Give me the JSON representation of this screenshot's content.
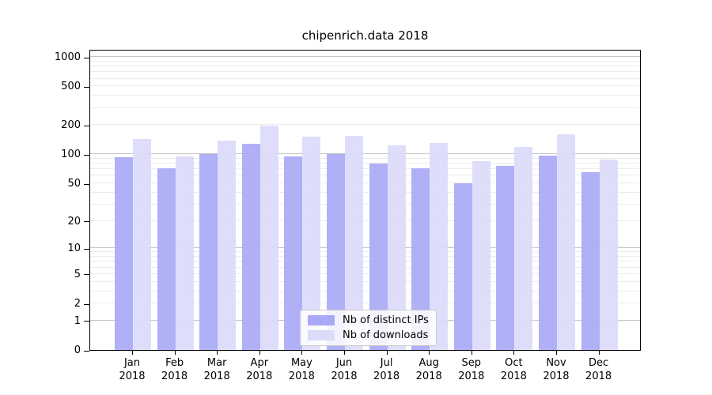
{
  "chart_data": {
    "type": "bar",
    "title": "chipenrich.data 2018",
    "x_months": [
      "Jan",
      "Feb",
      "Mar",
      "Apr",
      "May",
      "Jun",
      "Jul",
      "Aug",
      "Sep",
      "Oct",
      "Nov",
      "Dec"
    ],
    "x_year": "2018",
    "series": [
      {
        "name": "Nb of distinct IPs",
        "color": "#a9a9f6",
        "values": [
          93,
          72,
          101,
          129,
          96,
          101,
          81,
          72,
          50,
          76,
          97,
          65
        ]
      },
      {
        "name": "Nb of downloads",
        "color": "#dbdbfa",
        "values": [
          143,
          96,
          138,
          198,
          152,
          154,
          124,
          131,
          85,
          120,
          162,
          89
        ]
      }
    ],
    "yscale": "log1p",
    "yticks": [
      0,
      1,
      2,
      5,
      10,
      20,
      50,
      100,
      200,
      500,
      1000
    ],
    "ylim": [
      0,
      1210
    ],
    "xlabel": "",
    "ylabel": "",
    "grid": "horizontal-minor-and-major",
    "legend_position": "inside-bottom-center"
  }
}
